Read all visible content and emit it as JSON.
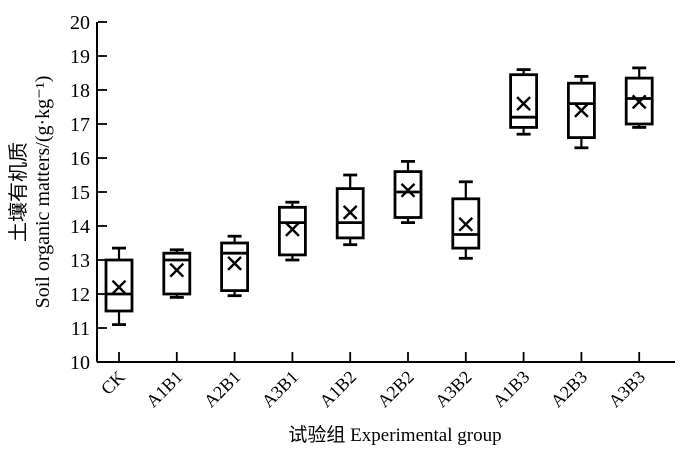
{
  "chart_data": {
    "type": "box",
    "title": "",
    "xlabel": "试验组 Experimental group",
    "ylabel_line1": "土壤有机质",
    "ylabel_line2": "Soil organic matters/(g·kg⁻¹)",
    "ylim": [
      10,
      20
    ],
    "yticks": [
      10,
      11,
      12,
      13,
      14,
      15,
      16,
      17,
      18,
      19,
      20
    ],
    "grid": false,
    "legend": "none",
    "marker_meaning": "x marker = mean value",
    "categories": [
      "CK",
      "A1B1",
      "A2B1",
      "A3B1",
      "A1B2",
      "A2B2",
      "A3B2",
      "A1B3",
      "A2B3",
      "A3B3"
    ],
    "series": [
      {
        "name": "CK",
        "whisker_low": 11.1,
        "q1": 11.5,
        "median": 12.0,
        "mean": 12.2,
        "q3": 13.0,
        "whisker_high": 13.35
      },
      {
        "name": "A1B1",
        "whisker_low": 11.9,
        "q1": 12.0,
        "median": 13.0,
        "mean": 12.7,
        "q3": 13.2,
        "whisker_high": 13.3
      },
      {
        "name": "A2B1",
        "whisker_low": 11.95,
        "q1": 12.1,
        "median": 13.2,
        "mean": 12.9,
        "q3": 13.5,
        "whisker_high": 13.7
      },
      {
        "name": "A3B1",
        "whisker_low": 13.0,
        "q1": 13.15,
        "median": 14.1,
        "mean": 13.9,
        "q3": 14.55,
        "whisker_high": 14.7
      },
      {
        "name": "A1B2",
        "whisker_low": 13.45,
        "q1": 13.65,
        "median": 14.1,
        "mean": 14.4,
        "q3": 15.1,
        "whisker_high": 15.5
      },
      {
        "name": "A2B2",
        "whisker_low": 14.1,
        "q1": 14.25,
        "median": 15.0,
        "mean": 15.05,
        "q3": 15.6,
        "whisker_high": 15.9
      },
      {
        "name": "A3B2",
        "whisker_low": 13.05,
        "q1": 13.35,
        "median": 13.75,
        "mean": 14.05,
        "q3": 14.8,
        "whisker_high": 15.3
      },
      {
        "name": "A1B3",
        "whisker_low": 16.7,
        "q1": 16.9,
        "median": 17.2,
        "mean": 17.6,
        "q3": 18.45,
        "whisker_high": 18.6
      },
      {
        "name": "A2B3",
        "whisker_low": 16.3,
        "q1": 16.6,
        "median": 17.6,
        "mean": 17.4,
        "q3": 18.2,
        "whisker_high": 18.4
      },
      {
        "name": "A3B3",
        "whisker_low": 16.9,
        "q1": 17.0,
        "median": 17.75,
        "mean": 17.65,
        "q3": 18.35,
        "whisker_high": 18.65
      }
    ],
    "colors": {
      "stroke": "#000000",
      "box_fill": "#ffffff",
      "background": "#ffffff"
    }
  }
}
